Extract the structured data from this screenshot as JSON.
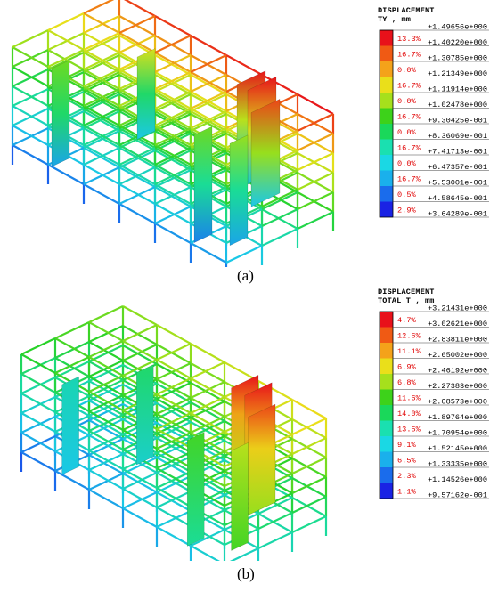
{
  "figures": [
    {
      "id": "a",
      "caption": "(a)",
      "legend": {
        "title_line1": "DISPLACEMENT",
        "title_line2": "TY , mm",
        "values": [
          "+1.49656e+000",
          "+1.40220e+000",
          "+1.30785e+000",
          "+1.21349e+000",
          "+1.11914e+000",
          "+1.02478e+000",
          "+9.30425e-001",
          "+8.36069e-001",
          "+7.41713e-001",
          "+6.47357e-001",
          "+5.53001e-001",
          "+4.58645e-001",
          "+3.64289e-001"
        ],
        "percents": [
          "13.3%",
          "16.7%",
          "0.0%",
          "16.7%",
          "0.0%",
          "16.7%",
          "0.0%",
          "16.7%",
          "0.0%",
          "16.7%",
          "0.5%",
          "2.9%"
        ],
        "colors": [
          "#e8111a",
          "#f05a14",
          "#f4a21a",
          "#eadf1a",
          "#a6e01c",
          "#3dd21a",
          "#1ad85a",
          "#1ae0b0",
          "#1ad8e4",
          "#1ab0ec",
          "#1a6cec",
          "#1a22e4"
        ]
      }
    },
    {
      "id": "b",
      "caption": "(b)",
      "legend": {
        "title_line1": "DISPLACEMENT",
        "title_line2": "TOTAL T , mm",
        "values": [
          "+3.21431e+000",
          "+3.02621e+000",
          "+2.83811e+000",
          "+2.65002e+000",
          "+2.46192e+000",
          "+2.27383e+000",
          "+2.08573e+000",
          "+1.89764e+000",
          "+1.70954e+000",
          "+1.52145e+000",
          "+1.33335e+000",
          "+1.14526e+000",
          "+9.57162e-001"
        ],
        "percents": [
          "4.7%",
          "12.6%",
          "11.1%",
          "6.9%",
          "6.8%",
          "11.6%",
          "14.0%",
          "13.5%",
          "9.1%",
          "6.5%",
          "2.3%",
          "1.1%"
        ],
        "colors": [
          "#e8111a",
          "#f05a14",
          "#f4a21a",
          "#eadf1a",
          "#a6e01c",
          "#3dd21a",
          "#1ad85a",
          "#1ae0b0",
          "#1ad8e4",
          "#1ab0ec",
          "#1a6cec",
          "#1a22e4"
        ]
      }
    }
  ]
}
